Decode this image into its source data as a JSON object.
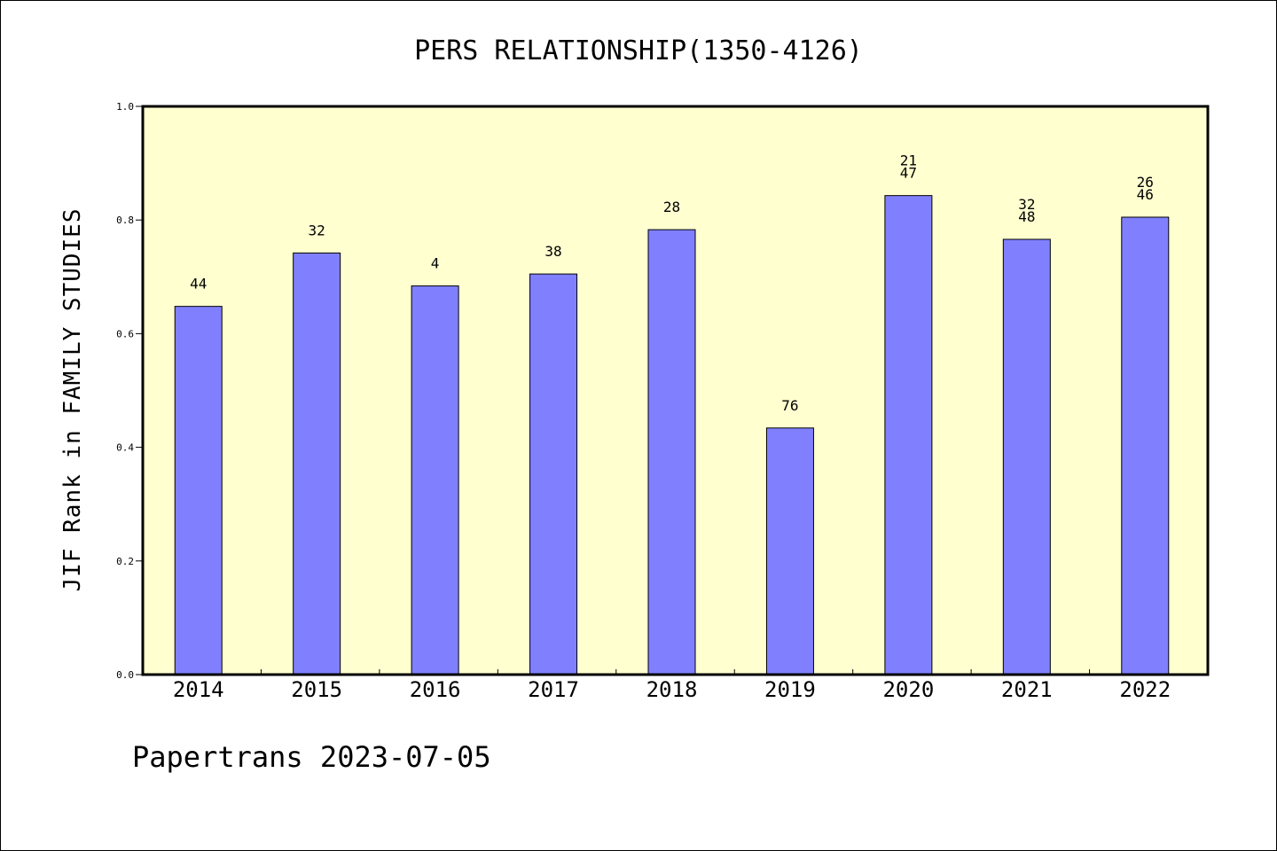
{
  "chart_data": {
    "type": "bar",
    "title": "PERS RELATIONSHIP(1350-4126)",
    "ylabel": "JIF Rank in FAMILY STUDIES",
    "xlabel": "",
    "ylim": [
      0.0,
      1.0
    ],
    "yticks": [
      "0.0",
      "0.2",
      "0.4",
      "0.6",
      "0.8",
      "1.0"
    ],
    "categories": [
      "2014",
      "2015",
      "2016",
      "2017",
      "2018",
      "2019",
      "2020",
      "2021",
      "2022"
    ],
    "values": [
      0.648,
      0.742,
      0.684,
      0.705,
      0.783,
      0.434,
      0.843,
      0.766,
      0.805
    ],
    "labels": [
      [
        "44"
      ],
      [
        "32"
      ],
      [
        "4"
      ],
      [
        "38"
      ],
      [
        "28"
      ],
      [
        "76"
      ],
      [
        "21",
        "47"
      ],
      [
        "32",
        "48"
      ],
      [
        "26",
        "46"
      ]
    ],
    "bar_color": "#8080ff",
    "plot_background": "#ffffd0",
    "grid": false
  },
  "footer": "Papertrans 2023-07-05"
}
